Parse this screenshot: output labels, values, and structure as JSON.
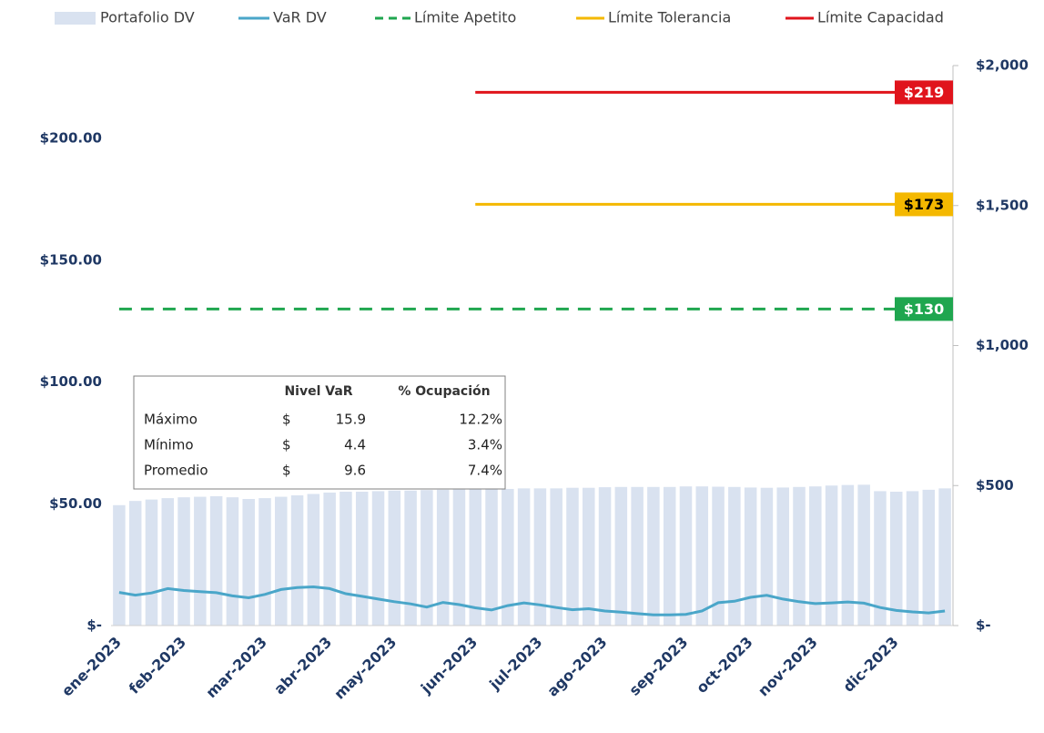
{
  "chart_data": {
    "type": "combo",
    "categories": [
      "ene-2023",
      null,
      null,
      null,
      "feb-2023",
      null,
      null,
      null,
      null,
      "mar-2023",
      null,
      null,
      null,
      "abr-2023",
      null,
      null,
      null,
      "may-2023",
      null,
      null,
      null,
      null,
      "jun-2023",
      null,
      null,
      null,
      "jul-2023",
      null,
      null,
      null,
      "ago-2023",
      null,
      null,
      null,
      null,
      "sep-2023",
      null,
      null,
      null,
      "oct-2023",
      null,
      null,
      null,
      "nov-2023",
      null,
      null,
      null,
      null,
      "dic-2023",
      null,
      null,
      null
    ],
    "series": [
      {
        "name": "Portafolio DV",
        "type": "bar",
        "axis": "y2",
        "color": "#d9e2f0",
        "values": [
          430,
          445,
          450,
          455,
          458,
          460,
          462,
          458,
          452,
          455,
          460,
          465,
          470,
          475,
          478,
          478,
          480,
          482,
          482,
          484,
          485,
          486,
          487,
          488,
          488,
          490,
          490,
          490,
          492,
          492,
          494,
          495,
          495,
          495,
          495,
          497,
          497,
          496,
          495,
          493,
          492,
          493,
          495,
          497,
          500,
          502,
          503,
          480,
          478,
          480,
          485,
          490
        ]
      },
      {
        "name": "VaR DV",
        "type": "line",
        "color": "#4aa6c9",
        "values": [
          13.6,
          12.5,
          13.4,
          15.2,
          14.4,
          13.9,
          13.5,
          12.2,
          11.4,
          12.8,
          14.8,
          15.6,
          15.9,
          15.2,
          13.1,
          12.0,
          10.9,
          9.8,
          8.9,
          7.6,
          9.5,
          8.6,
          7.3,
          6.4,
          8.2,
          9.3,
          8.5,
          7.4,
          6.5,
          6.9,
          6.0,
          5.5,
          4.9,
          4.4,
          4.4,
          4.6,
          6.0,
          9.4,
          10.0,
          11.6,
          12.4,
          10.9,
          9.8,
          9.0,
          9.3,
          9.7,
          9.2,
          7.4,
          6.2,
          5.6,
          5.2,
          6.0
        ]
      },
      {
        "name": "Límite Apetito",
        "type": "line",
        "dash": true,
        "color": "#1fa64f",
        "label_text_color": "#ffffff",
        "values": [
          130,
          130,
          130,
          130,
          130,
          130,
          130,
          130,
          130,
          130,
          130,
          130,
          130,
          130,
          130,
          130,
          130,
          130,
          130,
          130,
          130,
          130,
          130,
          130,
          130,
          130,
          130,
          130,
          130,
          130,
          130,
          130,
          130,
          130,
          130,
          130,
          130,
          130,
          130,
          130,
          130,
          130,
          130,
          130,
          130,
          130,
          130,
          130,
          130,
          130,
          130,
          130
        ],
        "value_labels": [
          null,
          null,
          null,
          null,
          null,
          null,
          null,
          null,
          null,
          null,
          null,
          null,
          null,
          null,
          null,
          null,
          null,
          null,
          null,
          null,
          null,
          null,
          null,
          null,
          null,
          null,
          null,
          null,
          null,
          null,
          null,
          null,
          null,
          null,
          null,
          null,
          null,
          null,
          null,
          null,
          null,
          null,
          null,
          null,
          null,
          null,
          null,
          null,
          null,
          null,
          null,
          "$130"
        ]
      },
      {
        "name": "Límite Tolerancia",
        "type": "line",
        "color": "#f4b800",
        "label_text_color": "#000000",
        "values": [
          null,
          null,
          null,
          null,
          null,
          null,
          null,
          null,
          null,
          null,
          null,
          null,
          null,
          null,
          null,
          null,
          null,
          null,
          null,
          null,
          null,
          null,
          173,
          173,
          173,
          173,
          173,
          173,
          173,
          173,
          173,
          173,
          173,
          173,
          173,
          173,
          173,
          173,
          173,
          173,
          173,
          173,
          173,
          173,
          173,
          173,
          173,
          173,
          173,
          173,
          173,
          173
        ],
        "value_labels": [
          null,
          null,
          null,
          null,
          null,
          null,
          null,
          null,
          null,
          null,
          null,
          null,
          null,
          null,
          null,
          null,
          null,
          null,
          null,
          null,
          null,
          null,
          null,
          null,
          null,
          null,
          null,
          null,
          null,
          null,
          null,
          null,
          null,
          null,
          null,
          null,
          null,
          null,
          null,
          null,
          null,
          null,
          null,
          null,
          null,
          null,
          null,
          null,
          null,
          null,
          null,
          "$173"
        ]
      },
      {
        "name": "Límite Capacidad",
        "type": "line",
        "color": "#e0141c",
        "label_text_color": "#ffffff",
        "values": [
          null,
          null,
          null,
          null,
          null,
          null,
          null,
          null,
          null,
          null,
          null,
          null,
          null,
          null,
          null,
          null,
          null,
          null,
          null,
          null,
          null,
          null,
          219,
          219,
          219,
          219,
          219,
          219,
          219,
          219,
          219,
          219,
          219,
          219,
          219,
          219,
          219,
          219,
          219,
          219,
          219,
          219,
          219,
          219,
          219,
          219,
          219,
          219,
          219,
          219,
          219,
          219
        ],
        "value_labels": [
          null,
          null,
          null,
          null,
          null,
          null,
          null,
          null,
          null,
          null,
          null,
          null,
          null,
          null,
          null,
          null,
          null,
          null,
          null,
          null,
          null,
          null,
          null,
          null,
          null,
          null,
          null,
          null,
          null,
          null,
          null,
          null,
          null,
          null,
          null,
          null,
          null,
          null,
          null,
          null,
          null,
          null,
          null,
          null,
          null,
          null,
          null,
          null,
          null,
          null,
          null,
          "$219"
        ]
      }
    ],
    "ylim": [
      0,
      230
    ],
    "yticks": [
      {
        "value": 0,
        "label": "$-"
      },
      {
        "value": 50,
        "label": "$50.00"
      },
      {
        "value": 100,
        "label": "$100.00"
      },
      {
        "value": 150,
        "label": "$150.00"
      },
      {
        "value": 200,
        "label": "$200.00"
      }
    ],
    "y2lim": [
      0,
      2000
    ],
    "y2ticks": [
      {
        "value": 0,
        "label": "$-"
      },
      {
        "value": 500,
        "label": "$500"
      },
      {
        "value": 1000,
        "label": "$1,000"
      },
      {
        "value": 1500,
        "label": "$1,500"
      },
      {
        "value": 2000,
        "label": "$2,000"
      }
    ],
    "legend": "top",
    "table": {
      "columns": [
        "Nivel VaR",
        "% Ocupación"
      ],
      "rows": [
        {
          "label": "Máximo",
          "currency": "$",
          "value": 15.9,
          "pct": "12.2%"
        },
        {
          "label": "Mínimo",
          "currency": "$",
          "value": 4.4,
          "pct": "3.4%"
        },
        {
          "label": "Promedio",
          "currency": "$",
          "value": 9.6,
          "pct": "7.4%"
        }
      ]
    }
  }
}
